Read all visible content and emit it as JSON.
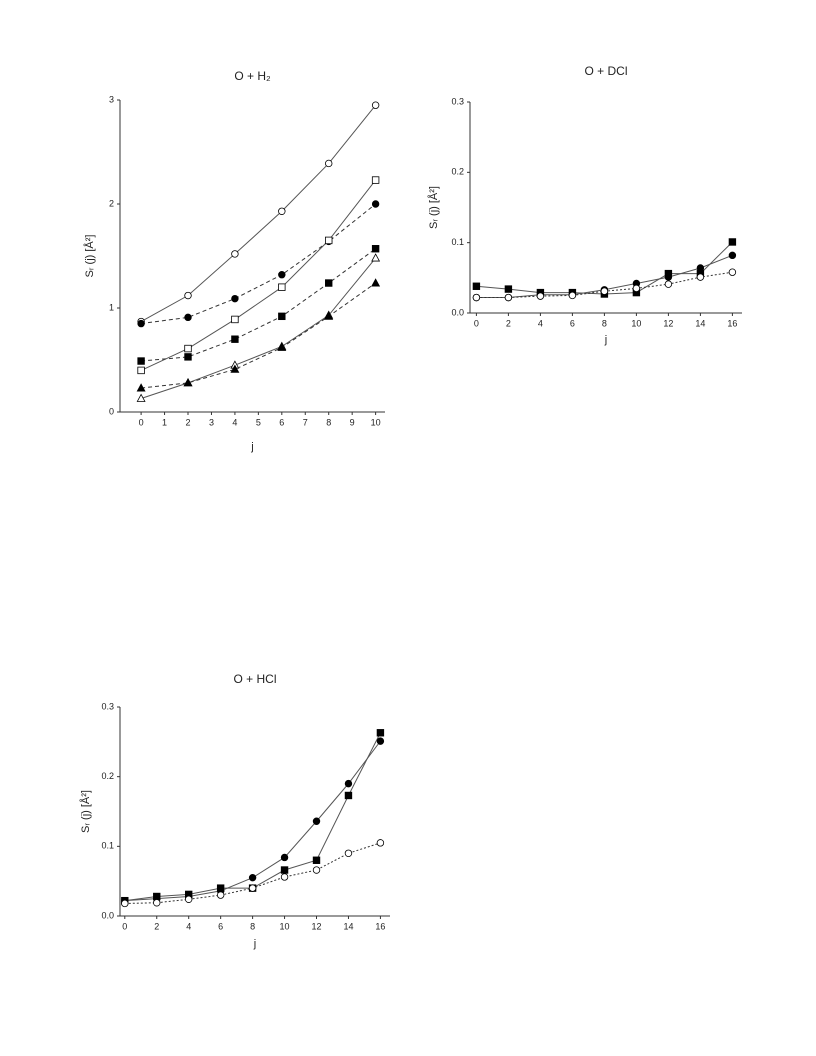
{
  "chart_data": [
    {
      "type": "line",
      "title": "O + H₂",
      "xlabel": "j",
      "ylabel": "Sᵣ (j) [Å²]",
      "x": [
        0,
        2,
        4,
        6,
        8,
        10
      ],
      "xlim": [
        -0.9,
        10.4
      ],
      "xticks": [
        0,
        1,
        2,
        3,
        4,
        5,
        6,
        7,
        8,
        9,
        10
      ],
      "ylim": [
        0,
        3
      ],
      "yticks": [
        0,
        1,
        2,
        3
      ],
      "series": [
        {
          "color": "#000000",
          "marker": "circle",
          "filled": false,
          "line": "solid",
          "values": [
            0.87,
            1.12,
            1.52,
            1.93,
            2.39,
            2.95
          ]
        },
        {
          "color": "#000000",
          "marker": "circle",
          "filled": true,
          "line": "dashed",
          "values": [
            0.85,
            0.91,
            1.09,
            1.32,
            1.64,
            2.0
          ]
        },
        {
          "color": "#000000",
          "marker": "square",
          "filled": false,
          "line": "solid",
          "values": [
            0.4,
            0.61,
            0.89,
            1.2,
            1.65,
            2.23
          ]
        },
        {
          "color": "#000000",
          "marker": "square",
          "filled": true,
          "line": "dashed",
          "values": [
            0.49,
            0.53,
            0.7,
            0.92,
            1.24,
            1.57
          ]
        },
        {
          "color": "#000000",
          "marker": "triangle",
          "filled": false,
          "line": "solid",
          "values": [
            0.13,
            0.28,
            0.45,
            0.63,
            0.93,
            1.48
          ]
        },
        {
          "color": "#000000",
          "marker": "triangle",
          "filled": true,
          "line": "dashed",
          "values": [
            0.23,
            0.28,
            0.41,
            0.62,
            0.92,
            1.24
          ]
        }
      ]
    },
    {
      "type": "line",
      "title": "O + DCl",
      "xlabel": "j",
      "ylabel": "Sᵣ (j) [Å²]",
      "x": [
        0,
        2,
        4,
        6,
        8,
        10,
        12,
        14,
        16
      ],
      "xlim": [
        -0.4,
        16.6
      ],
      "xticks": [
        0,
        2,
        4,
        6,
        8,
        10,
        12,
        14,
        16
      ],
      "ylim": [
        0,
        0.3
      ],
      "yticks": [
        {
          "value": 0,
          "label": "0.0"
        },
        0.1,
        0.2,
        0.3
      ],
      "series": [
        {
          "color": "#000000",
          "marker": "square",
          "filled": true,
          "line": "solid",
          "values": [
            0.038,
            0.034,
            0.029,
            0.029,
            0.027,
            0.029,
            0.056,
            0.056,
            0.101
          ]
        },
        {
          "color": "#000000",
          "marker": "circle",
          "filled": true,
          "line": "solid",
          "values": [
            0.022,
            0.022,
            0.026,
            0.026,
            0.033,
            0.042,
            0.051,
            0.064,
            0.082
          ]
        },
        {
          "color": "#000000",
          "marker": "circle",
          "filled": false,
          "line": "dotted",
          "values": [
            0.022,
            0.022,
            0.024,
            0.025,
            0.031,
            0.035,
            0.041,
            0.051,
            0.058
          ]
        }
      ]
    },
    {
      "type": "line",
      "title": "O + HCl",
      "xlabel": "j",
      "ylabel": "Sᵣ (j) [Å²]",
      "x": [
        0,
        2,
        4,
        6,
        8,
        10,
        12,
        14,
        16
      ],
      "xlim": [
        -0.3,
        16.6
      ],
      "xticks": [
        0,
        2,
        4,
        6,
        8,
        10,
        12,
        14,
        16
      ],
      "ylim": [
        0,
        0.3
      ],
      "yticks": [
        {
          "value": 0,
          "label": "0.0"
        },
        0.1,
        0.2,
        0.3
      ],
      "series": [
        {
          "color": "#000000",
          "marker": "square",
          "filled": true,
          "line": "solid",
          "values": [
            0.022,
            0.028,
            0.031,
            0.04,
            0.04,
            0.066,
            0.08,
            0.173,
            0.263
          ]
        },
        {
          "color": "#000000",
          "marker": "circle",
          "filled": true,
          "line": "solid",
          "values": [
            0.022,
            0.025,
            0.028,
            0.036,
            0.055,
            0.084,
            0.136,
            0.19,
            0.251
          ]
        },
        {
          "color": "#000000",
          "marker": "circle",
          "filled": false,
          "line": "dotted",
          "values": [
            0.018,
            0.019,
            0.024,
            0.03,
            0.04,
            0.056,
            0.066,
            0.09,
            0.105
          ]
        }
      ]
    }
  ]
}
